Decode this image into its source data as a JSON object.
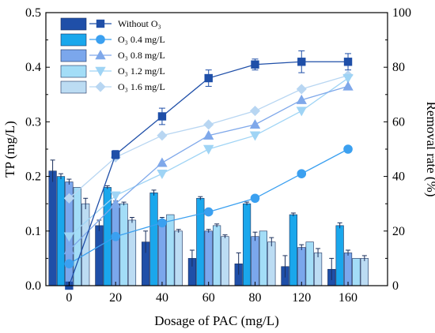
{
  "chart_data": {
    "type": "bar+line",
    "categories": [
      "0",
      "20",
      "40",
      "60",
      "80",
      "120",
      "160"
    ],
    "xlabel": "Dosage of PAC (mg/L)",
    "ylabel_left": "TP (mg/L)",
    "ylabel_right": "Removal rate (%)",
    "ylim_left": [
      0.0,
      0.5
    ],
    "ylim_right": [
      0,
      100
    ],
    "yticks_left": [
      "0.0",
      "0.1",
      "0.2",
      "0.3",
      "0.4",
      "0.5"
    ],
    "yticks_right": [
      "0",
      "20",
      "40",
      "60",
      "80",
      "100"
    ],
    "legend_position": "top-left",
    "legend_header_line": "Without O",
    "series": [
      {
        "name": "Without O₃",
        "color": "#1f4fa8",
        "bar_color": "#1f4fa8",
        "marker": "square",
        "tp": [
          0.21,
          0.11,
          0.08,
          0.05,
          0.04,
          0.035,
          0.03
        ],
        "tp_err": [
          0.02,
          0.01,
          0.02,
          0.015,
          0.02,
          0.02,
          0.02
        ],
        "removal": [
          0,
          48,
          62,
          76,
          81,
          82,
          82
        ],
        "removal_err": [
          0,
          1.5,
          3,
          3,
          2,
          4,
          3
        ]
      },
      {
        "name": "O₃ 0.4 mg/L",
        "color": "#3ba0f0",
        "bar_color": "#1aa7ec",
        "marker": "circle",
        "tp": [
          0.2,
          0.18,
          0.17,
          0.16,
          0.15,
          0.13,
          0.11
        ],
        "tp_err": [
          0.005,
          0.003,
          0.005,
          0.003,
          0.003,
          0.003,
          0.005
        ],
        "removal": [
          8,
          18,
          23,
          27,
          32,
          41,
          50
        ],
        "removal_err": [
          0,
          0,
          0,
          0,
          0,
          0,
          0
        ]
      },
      {
        "name": "O₃ 0.8 mg/L",
        "color": "#7fa8ea",
        "bar_color": "#7ba7ec",
        "marker": "triangle-up",
        "tp": [
          0.19,
          0.15,
          0.12,
          0.1,
          0.09,
          0.07,
          0.06
        ],
        "tp_err": [
          0.005,
          0.005,
          0.005,
          0.003,
          0.008,
          0.005,
          0.005
        ],
        "removal": [
          13,
          30,
          45,
          55,
          59,
          68,
          73
        ],
        "removal_err": [
          0,
          0,
          0,
          0,
          0,
          0,
          0
        ]
      },
      {
        "name": "O₃ 1.2 mg/L",
        "color": "#9fd4f5",
        "bar_color": "#a3ddf7",
        "marker": "triangle-down",
        "tp": [
          0.18,
          0.15,
          0.13,
          0.11,
          0.1,
          0.08,
          0.05
        ],
        "tp_err": [
          0.0,
          0.003,
          0.0,
          0.003,
          0.0,
          0.0,
          0.0
        ],
        "removal": [
          18,
          33,
          41,
          50,
          55,
          64,
          76
        ],
        "removal_err": [
          0,
          0,
          0,
          0,
          0,
          0,
          0
        ]
      },
      {
        "name": "O₃ 1.6 mg/L",
        "color": "#b8d6f2",
        "bar_color": "#bcdcf3",
        "marker": "diamond",
        "tp": [
          0.15,
          0.12,
          0.1,
          0.09,
          0.08,
          0.06,
          0.05
        ],
        "tp_err": [
          0.01,
          0.005,
          0.003,
          0.003,
          0.008,
          0.008,
          0.005
        ],
        "removal": [
          32,
          47,
          55,
          59,
          64,
          72,
          77
        ],
        "removal_err": [
          0,
          0,
          0,
          0,
          0,
          0,
          0
        ]
      }
    ]
  }
}
